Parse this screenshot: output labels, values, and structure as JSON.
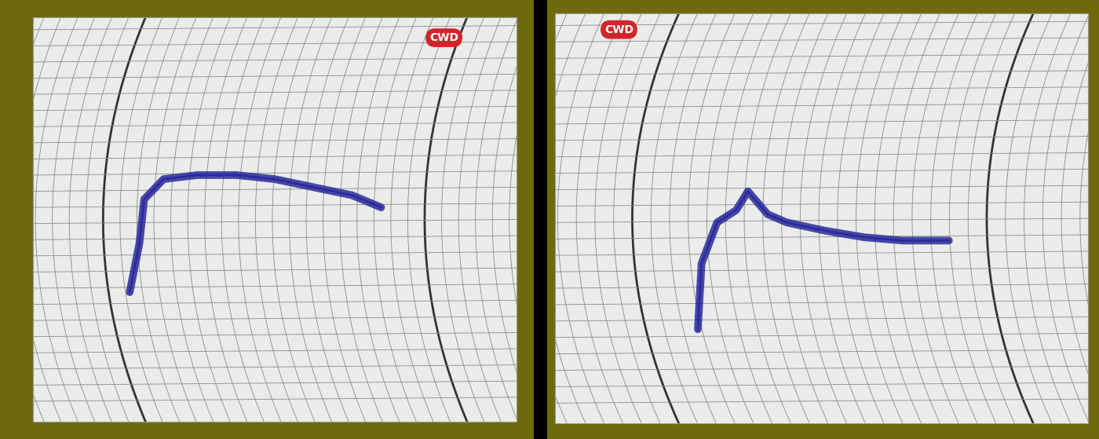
{
  "chart_data": [
    {
      "type": "line",
      "title": "CWD",
      "grid": true,
      "tick_labels": false,
      "xlim": [
        0,
        100
      ],
      "ylim": [
        0,
        100
      ],
      "xticks": [],
      "yticks": [],
      "x": [
        20,
        22,
        23,
        27,
        34,
        42,
        50,
        58,
        66,
        72
      ],
      "series": [
        {
          "name": null,
          "color": "#2b2a9c",
          "values": [
            32,
            44,
            55,
            60,
            61,
            61,
            60,
            58,
            56,
            53
          ]
        }
      ]
    },
    {
      "type": "line",
      "title": "CWD",
      "grid": true,
      "tick_labels": false,
      "xlim": [
        0,
        100
      ],
      "ylim": [
        0,
        100
      ],
      "xticks": [],
      "yticks": [],
      "x": [
        26.8,
        27.5,
        30.4,
        34,
        36.2,
        39.9,
        43.5,
        50.7,
        58,
        65.2,
        73.9
      ],
      "series": [
        {
          "name": null,
          "color": "#2b2a9c",
          "values": [
            23,
            39,
            49,
            52,
            56.6,
            51,
            49,
            47,
            45.4,
            44.6,
            44.6
          ]
        }
      ]
    }
  ]
}
